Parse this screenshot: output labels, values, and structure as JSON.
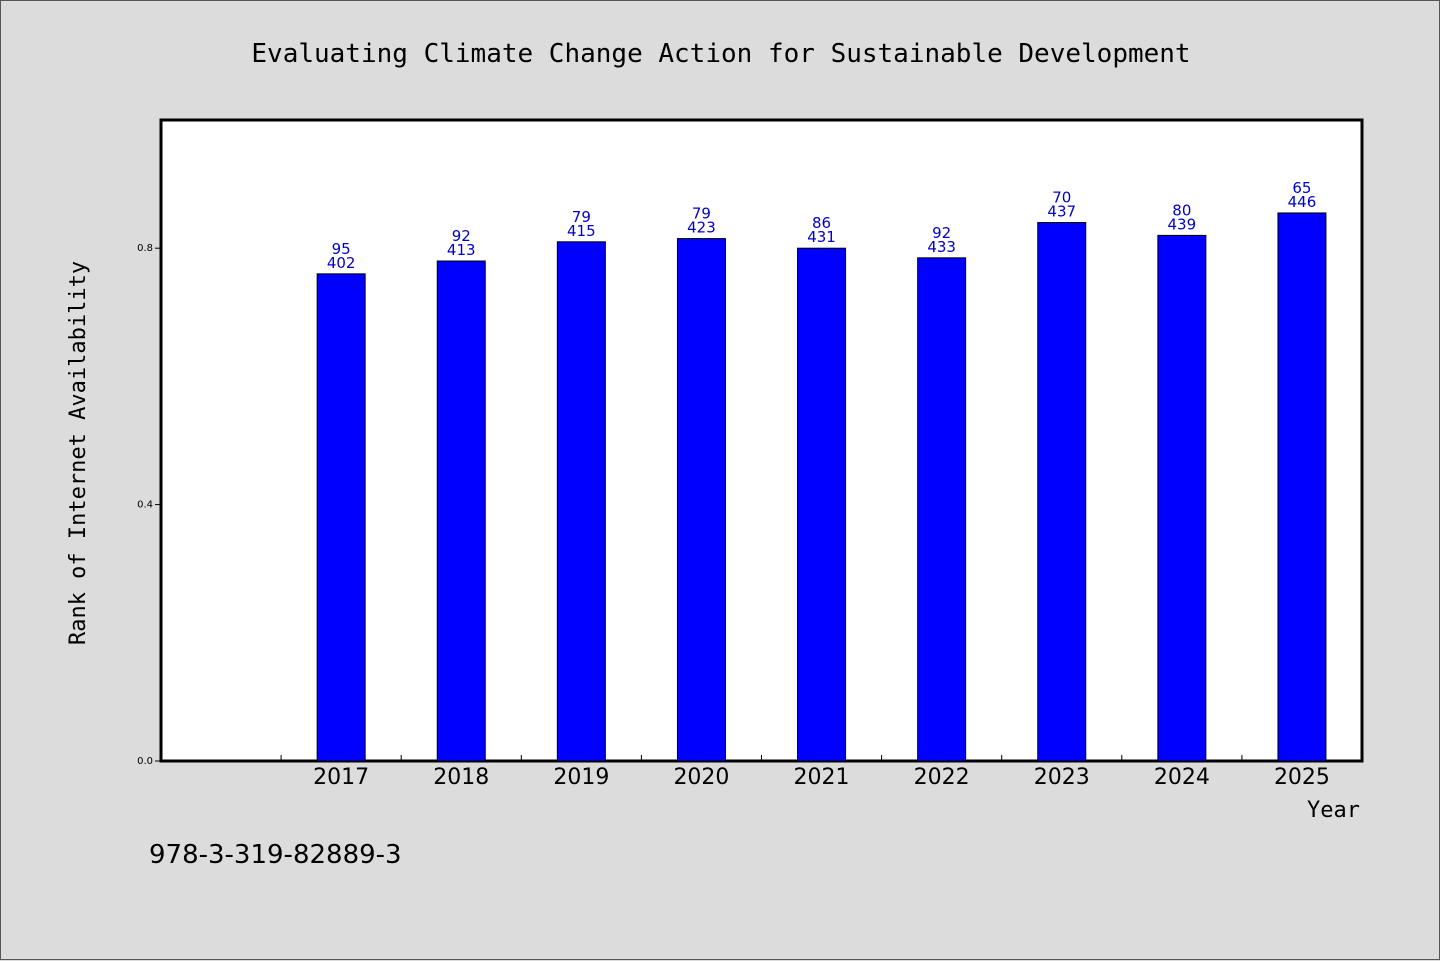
{
  "chart_data": {
    "type": "bar",
    "title": "Evaluating Climate Change Action for Sustainable Development",
    "xlabel": "Year",
    "ylabel": "Rank of Internet Availability",
    "categories": [
      "2017",
      "2018",
      "2019",
      "2020",
      "2021",
      "2022",
      "2023",
      "2024",
      "2025"
    ],
    "values": [
      0.76,
      0.78,
      0.81,
      0.815,
      0.8,
      0.785,
      0.84,
      0.82,
      0.855
    ],
    "data_labels_top": [
      "95",
      "92",
      "79",
      "79",
      "86",
      "92",
      "70",
      "80",
      "65"
    ],
    "data_labels_bottom": [
      "402",
      "413",
      "415",
      "423",
      "431",
      "433",
      "437",
      "439",
      "446"
    ],
    "yticks": [
      0.0,
      0.4,
      0.8
    ],
    "ytick_labels": [
      "0.0",
      "0.4",
      "0.8"
    ],
    "ylim": [
      0,
      1.0
    ],
    "x_slots": 10,
    "x_first_slot": 1,
    "grid": false,
    "legend": "none",
    "bar_color": "#0000ff",
    "label_color": "#0000cc"
  },
  "footer": {
    "isbn": "978-3-319-82889-3"
  }
}
